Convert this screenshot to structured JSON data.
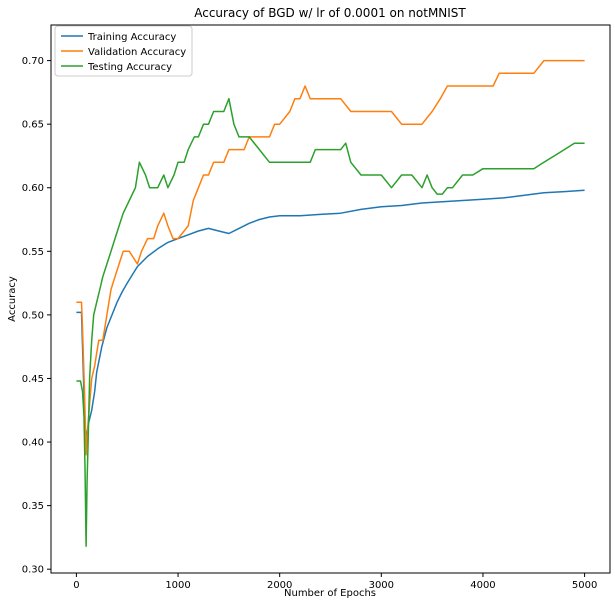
{
  "chart_data": {
    "type": "line",
    "title": "Accuracy of BGD w/ lr of 0.0001 on notMNIST",
    "xlabel": "Number of Epochs",
    "ylabel": "Accuracy",
    "xlim": [
      -250,
      5250
    ],
    "ylim": [
      0.297,
      0.728
    ],
    "xticks": [
      0,
      1000,
      2000,
      3000,
      4000,
      5000
    ],
    "yticks": [
      0.3,
      0.35,
      0.4,
      0.45,
      0.5,
      0.55,
      0.6,
      0.65,
      0.7
    ],
    "xtick_labels": [
      "0",
      "1000",
      "2000",
      "3000",
      "4000",
      "5000"
    ],
    "ytick_labels": [
      "0.30",
      "0.35",
      "0.40",
      "0.45",
      "0.50",
      "0.55",
      "0.60",
      "0.65",
      "0.70"
    ],
    "grid": false,
    "legend_position": "top-left",
    "series": [
      {
        "name": "Training Accuracy",
        "color": "#1f77b4",
        "x": [
          0,
          50,
          70,
          85,
          100,
          120,
          150,
          180,
          200,
          250,
          300,
          350,
          400,
          450,
          500,
          600,
          700,
          800,
          900,
          1000,
          1100,
          1200,
          1300,
          1400,
          1500,
          1600,
          1700,
          1800,
          1900,
          2000,
          2200,
          2400,
          2600,
          2800,
          3000,
          3200,
          3400,
          3600,
          3800,
          4000,
          4200,
          4400,
          4600,
          4800,
          5000
        ],
        "y": [
          0.502,
          0.502,
          0.45,
          0.41,
          0.405,
          0.415,
          0.425,
          0.44,
          0.455,
          0.475,
          0.49,
          0.5,
          0.51,
          0.518,
          0.525,
          0.538,
          0.546,
          0.552,
          0.557,
          0.56,
          0.563,
          0.566,
          0.568,
          0.566,
          0.564,
          0.568,
          0.572,
          0.575,
          0.577,
          0.578,
          0.578,
          0.579,
          0.58,
          0.583,
          0.585,
          0.586,
          0.588,
          0.589,
          0.59,
          0.591,
          0.592,
          0.594,
          0.596,
          0.597,
          0.598
        ]
      },
      {
        "name": "Validation Accuracy",
        "color": "#ff7f0e",
        "x": [
          0,
          50,
          60,
          80,
          95,
          110,
          130,
          150,
          180,
          200,
          220,
          260,
          300,
          340,
          380,
          420,
          460,
          520,
          600,
          640,
          700,
          760,
          800,
          860,
          900,
          950,
          1000,
          1100,
          1150,
          1200,
          1250,
          1300,
          1350,
          1400,
          1450,
          1500,
          1550,
          1600,
          1650,
          1700,
          1800,
          1900,
          1950,
          2000,
          2100,
          2150,
          2200,
          2250,
          2300,
          2350,
          2400,
          2500,
          2600,
          2700,
          2800,
          3000,
          3100,
          3200,
          3300,
          3400,
          3500,
          3580,
          3650,
          3700,
          3800,
          3900,
          4000,
          4100,
          4160,
          4300,
          4400,
          4500,
          4600,
          4700,
          5000
        ],
        "y": [
          0.51,
          0.51,
          0.49,
          0.44,
          0.39,
          0.41,
          0.43,
          0.45,
          0.46,
          0.47,
          0.48,
          0.48,
          0.5,
          0.52,
          0.53,
          0.54,
          0.55,
          0.55,
          0.54,
          0.55,
          0.56,
          0.56,
          0.57,
          0.58,
          0.57,
          0.56,
          0.56,
          0.57,
          0.59,
          0.6,
          0.61,
          0.61,
          0.62,
          0.62,
          0.62,
          0.63,
          0.63,
          0.63,
          0.63,
          0.64,
          0.64,
          0.64,
          0.65,
          0.65,
          0.66,
          0.67,
          0.67,
          0.68,
          0.67,
          0.67,
          0.67,
          0.67,
          0.67,
          0.66,
          0.66,
          0.66,
          0.66,
          0.65,
          0.65,
          0.65,
          0.66,
          0.67,
          0.68,
          0.68,
          0.68,
          0.68,
          0.68,
          0.68,
          0.69,
          0.69,
          0.69,
          0.69,
          0.7,
          0.7,
          0.7
        ]
      },
      {
        "name": "Testing Accuracy",
        "color": "#2ca02c",
        "x": [
          0,
          40,
          60,
          75,
          85,
          95,
          105,
          115,
          130,
          150,
          170,
          200,
          230,
          260,
          300,
          340,
          380,
          420,
          460,
          520,
          580,
          620,
          680,
          720,
          760,
          800,
          860,
          900,
          960,
          1000,
          1060,
          1100,
          1160,
          1200,
          1250,
          1300,
          1350,
          1400,
          1450,
          1500,
          1550,
          1600,
          1650,
          1700,
          1800,
          1900,
          2000,
          2100,
          2200,
          2300,
          2350,
          2400,
          2500,
          2600,
          2650,
          2700,
          2800,
          2900,
          3000,
          3100,
          3200,
          3300,
          3400,
          3450,
          3500,
          3550,
          3600,
          3650,
          3700,
          3800,
          3900,
          4000,
          4100,
          4200,
          4300,
          4400,
          4500,
          4600,
          4700,
          4800,
          4900,
          5000
        ],
        "y": [
          0.448,
          0.448,
          0.44,
          0.42,
          0.38,
          0.318,
          0.37,
          0.4,
          0.45,
          0.48,
          0.5,
          0.51,
          0.52,
          0.53,
          0.54,
          0.55,
          0.56,
          0.57,
          0.58,
          0.59,
          0.6,
          0.62,
          0.61,
          0.6,
          0.6,
          0.6,
          0.61,
          0.6,
          0.61,
          0.62,
          0.62,
          0.63,
          0.64,
          0.64,
          0.65,
          0.65,
          0.66,
          0.66,
          0.66,
          0.67,
          0.65,
          0.64,
          0.64,
          0.64,
          0.63,
          0.62,
          0.62,
          0.62,
          0.62,
          0.62,
          0.63,
          0.63,
          0.63,
          0.63,
          0.635,
          0.62,
          0.61,
          0.61,
          0.61,
          0.6,
          0.61,
          0.61,
          0.6,
          0.61,
          0.6,
          0.595,
          0.595,
          0.6,
          0.6,
          0.61,
          0.61,
          0.615,
          0.615,
          0.615,
          0.615,
          0.615,
          0.615,
          0.62,
          0.625,
          0.63,
          0.635,
          0.635
        ]
      }
    ]
  }
}
